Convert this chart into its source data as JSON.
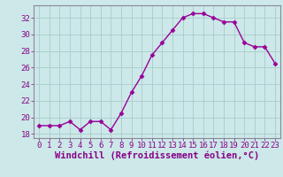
{
  "hours": [
    0,
    1,
    2,
    3,
    4,
    5,
    6,
    7,
    8,
    9,
    10,
    11,
    12,
    13,
    14,
    15,
    16,
    17,
    18,
    19,
    20,
    21,
    22,
    23
  ],
  "values": [
    19.0,
    19.0,
    19.0,
    19.5,
    18.5,
    19.5,
    19.5,
    18.5,
    20.5,
    23.0,
    25.0,
    27.5,
    29.0,
    30.5,
    32.0,
    32.5,
    32.5,
    32.0,
    31.5,
    31.5,
    29.0,
    28.5,
    28.5,
    26.5
  ],
  "line_color": "#990099",
  "marker": "D",
  "marker_size": 2.5,
  "bg_color": "#cce8e8",
  "grid_color": "#aacccc",
  "xlabel": "Windchill (Refroidissement éolien,°C)",
  "xlim": [
    -0.5,
    23.5
  ],
  "ylim": [
    17.5,
    33.5
  ],
  "yticks": [
    18,
    20,
    22,
    24,
    26,
    28,
    30,
    32
  ],
  "xticks": [
    0,
    1,
    2,
    3,
    4,
    5,
    6,
    7,
    8,
    9,
    10,
    11,
    12,
    13,
    14,
    15,
    16,
    17,
    18,
    19,
    20,
    21,
    22,
    23
  ],
  "xlabel_fontsize": 7.5,
  "tick_fontsize": 6.5,
  "tick_color": "#880088",
  "spine_color": "#888899",
  "linewidth": 1.0
}
